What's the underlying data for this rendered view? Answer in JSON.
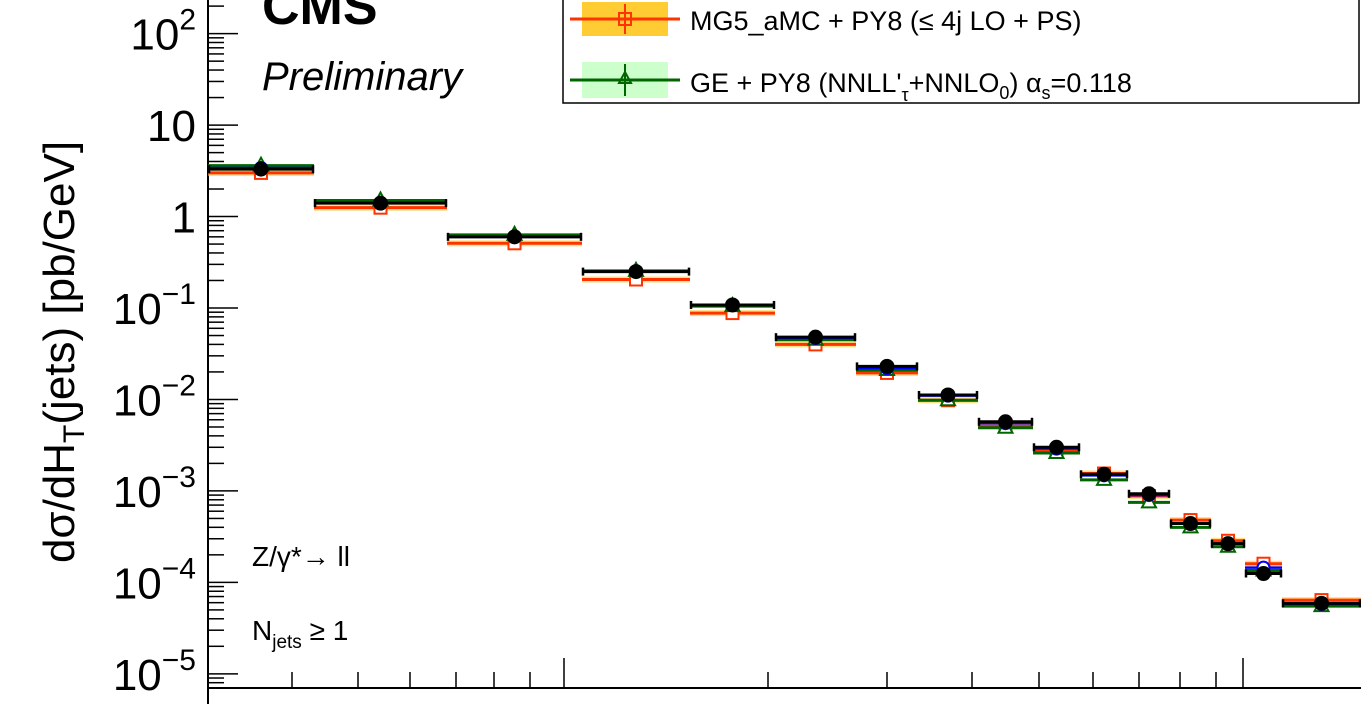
{
  "labels": {
    "experiment": "CMS",
    "status": "Preliminary",
    "process": "Z/γ*→ ll",
    "njets_main": "N",
    "njets_sub": "jets",
    "njets_rest": " ≥ 1",
    "ylabel_main": "dσ/dH",
    "ylabel_sub": "T",
    "ylabel_rest": "(jets)  [pb/GeV]"
  },
  "legend": {
    "mg5_label": "MG5_aMC + PY8 (≤ 4j LO + PS)",
    "ge_label_a": "GE + PY8 (NNLL'",
    "ge_label_sub1": "τ",
    "ge_label_b": "+NNLO",
    "ge_label_sub2": "0",
    "ge_label_c": ") ",
    "ge_label_alpha": "α",
    "ge_label_sub3": "s",
    "ge_label_d": "=0.118"
  },
  "colors": {
    "data": "#000000",
    "mg5": "#ff3300",
    "mg5_band": "#ffcc33",
    "ge": "#006600",
    "ge_band": "#ccffcc",
    "other": "#0000ff"
  },
  "chart_data": {
    "type": "scatter",
    "ylog": true,
    "ylim": [
      7e-06,
      300
    ],
    "ytick_labels": [
      {
        "value": 1e-05,
        "base": "10",
        "exp": "−5"
      },
      {
        "value": 0.0001,
        "base": "10",
        "exp": "−4"
      },
      {
        "value": 0.001,
        "base": "10",
        "exp": "−3"
      },
      {
        "value": 0.01,
        "base": "10",
        "exp": "−2"
      },
      {
        "value": 0.1,
        "base": "10",
        "exp": "−1"
      },
      {
        "value": 1,
        "base": "1",
        "exp": ""
      },
      {
        "value": 10,
        "base": "10",
        "exp": ""
      },
      {
        "value": 100,
        "base": "10",
        "exp": "2"
      }
    ],
    "bins": [
      {
        "data": 3.3,
        "mg5": 3.0,
        "ge": 3.6,
        "other": 3.4
      },
      {
        "data": 1.4,
        "mg5": 1.25,
        "ge": 1.5,
        "other": 1.4
      },
      {
        "data": 0.6,
        "mg5": 0.51,
        "ge": 0.63,
        "other": 0.6
      },
      {
        "data": 0.25,
        "mg5": 0.205,
        "ge": 0.255,
        "other": 0.25
      },
      {
        "data": 0.108,
        "mg5": 0.088,
        "ge": 0.105,
        "other": 0.108
      },
      {
        "data": 0.048,
        "mg5": 0.04,
        "ge": 0.045,
        "other": 0.047
      },
      {
        "data": 0.023,
        "mg5": 0.0195,
        "ge": 0.021,
        "other": 0.022
      },
      {
        "data": 0.0112,
        "mg5": 0.0098,
        "ge": 0.0098,
        "other": 0.011
      },
      {
        "data": 0.0057,
        "mg5": 0.0051,
        "ge": 0.0049,
        "other": 0.0055
      },
      {
        "data": 0.003,
        "mg5": 0.0027,
        "ge": 0.0026,
        "other": 0.0029
      },
      {
        "data": 0.00152,
        "mg5": 0.00155,
        "ge": 0.00132,
        "other": 0.00148
      },
      {
        "data": 0.00093,
        "mg5": 0.00088,
        "ge": 0.00075,
        "other": 0.0009
      },
      {
        "data": 0.00044,
        "mg5": 0.00048,
        "ge": 0.0004,
        "other": 0.00044
      },
      {
        "data": 0.000265,
        "mg5": 0.000285,
        "ge": 0.000245,
        "other": 0.000265
      },
      {
        "data": 0.000125,
        "mg5": 0.00016,
        "ge": 0.000135,
        "other": 0.000145
      },
      {
        "data": 5.9e-05,
        "mg5": 6.4e-05,
        "ge": 5.5e-05,
        "other": 5.8e-05
      }
    ]
  }
}
